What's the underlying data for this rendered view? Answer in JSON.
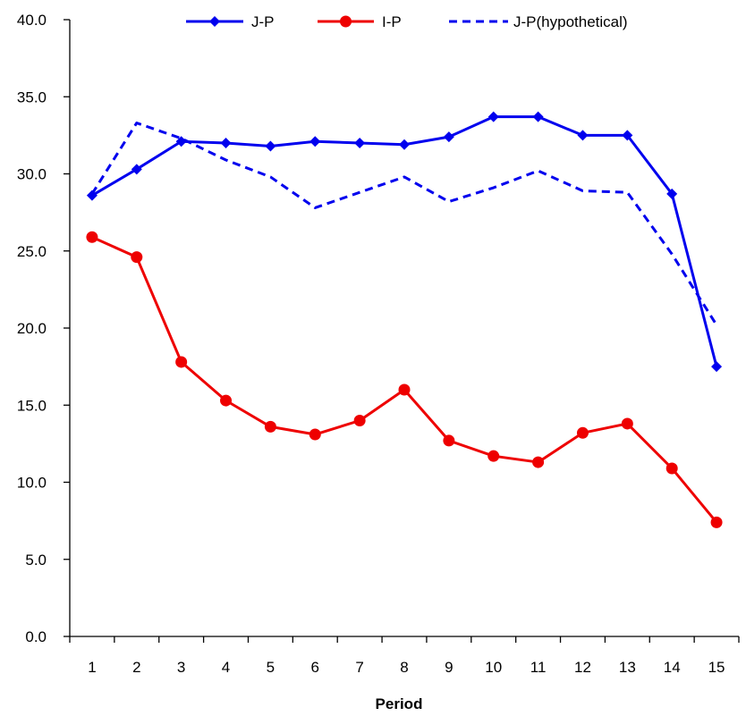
{
  "chart_data": {
    "type": "line",
    "title": "",
    "xlabel": "Period",
    "ylabel": "",
    "categories": [
      "1",
      "2",
      "3",
      "4",
      "5",
      "6",
      "7",
      "8",
      "9",
      "10",
      "11",
      "12",
      "13",
      "14",
      "15"
    ],
    "ylim": [
      0,
      40
    ],
    "yticks": [
      "0.0",
      "5.0",
      "10.0",
      "15.0",
      "20.0",
      "25.0",
      "30.0",
      "35.0",
      "40.0"
    ],
    "grid": false,
    "legend_position": "top",
    "series": [
      {
        "name": "J-P",
        "color": "#0000ee",
        "line_style": "solid",
        "marker": "diamond",
        "values": [
          28.6,
          30.3,
          32.1,
          32.0,
          31.8,
          32.1,
          32.0,
          31.9,
          32.4,
          33.7,
          33.7,
          32.5,
          32.5,
          28.7,
          17.5
        ]
      },
      {
        "name": "I-P",
        "color": "#ee0000",
        "line_style": "solid",
        "marker": "circle",
        "values": [
          25.9,
          24.6,
          17.8,
          15.3,
          13.6,
          13.1,
          14.0,
          16.0,
          12.7,
          11.7,
          11.3,
          13.2,
          13.8,
          10.9,
          7.4
        ]
      },
      {
        "name": "J-P(hypothetical)",
        "color": "#0000ee",
        "line_style": "dashed",
        "marker": "none",
        "values": [
          28.7,
          33.3,
          32.3,
          30.9,
          29.8,
          27.8,
          28.8,
          29.8,
          28.2,
          29.1,
          30.2,
          28.9,
          28.8,
          24.8,
          20.2
        ]
      }
    ]
  }
}
